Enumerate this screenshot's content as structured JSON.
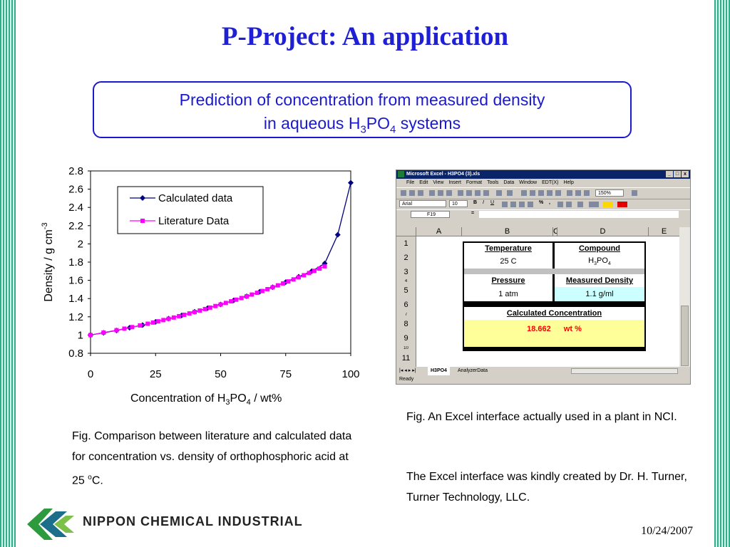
{
  "slide": {
    "title": "P-Project:  An application",
    "subtitle_line1": "Prediction of concentration from measured density",
    "subtitle_line2_pre": "in aqueous H",
    "subtitle_sub1": "3",
    "subtitle_mid": "PO",
    "subtitle_sub2": "4",
    "subtitle_post": " systems",
    "caption_left": "Fig.   Comparison between literature and calculated data for concentration vs. density of orthophosphoric acid at 25 ",
    "caption_left_sup": "o",
    "caption_left_end": "C.",
    "caption_right_1": "Fig.  An Excel interface actually used in a plant in NCI.",
    "caption_right_2": "The Excel interface was kindly created by Dr. H. Turner, Turner Technology, LLC.",
    "company": "NIPPON CHEMICAL INDUSTRIAL",
    "date": "10/24/2007"
  },
  "chart_data": {
    "type": "line",
    "xlabel_pre": "Concentration of H",
    "xlabel_sub1": "3",
    "xlabel_mid": "PO",
    "xlabel_sub2": "4",
    "xlabel_post": " / wt%",
    "ylabel": "Density / g cm",
    "ylabel_sup": "-3",
    "xlim": [
      0,
      100
    ],
    "ylim": [
      0.8,
      2.8
    ],
    "xticks": [
      "0",
      "25",
      "50",
      "75",
      "100"
    ],
    "yticks": [
      "0.8",
      "1",
      "1.2",
      "1.4",
      "1.6",
      "1.8",
      "2",
      "2.2",
      "2.4",
      "2.6",
      "2.8"
    ],
    "legend_position": "top-left",
    "series": [
      {
        "name": "Calculated data",
        "color": "#000080",
        "marker": "diamond",
        "x": [
          0,
          5,
          10,
          15,
          20,
          25,
          30,
          35,
          40,
          45,
          50,
          55,
          60,
          65,
          70,
          75,
          80,
          85,
          90,
          95,
          100
        ],
        "y": [
          1.0,
          1.025,
          1.05,
          1.08,
          1.11,
          1.145,
          1.18,
          1.215,
          1.255,
          1.295,
          1.335,
          1.38,
          1.425,
          1.475,
          1.525,
          1.58,
          1.64,
          1.7,
          1.785,
          2.1,
          2.67
        ]
      },
      {
        "name": "Literature Data",
        "color": "#ff00ff",
        "marker": "square",
        "x": [
          0,
          5,
          10,
          13,
          16,
          19,
          22,
          24,
          26,
          28,
          30,
          32,
          34,
          36,
          38,
          40,
          42,
          44,
          46,
          48,
          50,
          52,
          54,
          56,
          58,
          60,
          62,
          64,
          66,
          68,
          70,
          72,
          74,
          76,
          78,
          80,
          82,
          84,
          86,
          88,
          90
        ],
        "y": [
          1.0,
          1.027,
          1.053,
          1.07,
          1.087,
          1.105,
          1.124,
          1.137,
          1.15,
          1.164,
          1.178,
          1.192,
          1.207,
          1.222,
          1.237,
          1.253,
          1.269,
          1.285,
          1.301,
          1.318,
          1.335,
          1.352,
          1.37,
          1.388,
          1.406,
          1.425,
          1.444,
          1.463,
          1.483,
          1.503,
          1.524,
          1.545,
          1.566,
          1.588,
          1.61,
          1.633,
          1.656,
          1.68,
          1.704,
          1.729,
          1.754
        ]
      }
    ]
  },
  "excel": {
    "window_title": "Microsoft Excel - H3PO4 (3).xls",
    "win_buttons": [
      "_",
      "□",
      "x"
    ],
    "menus": [
      "File",
      "Edit",
      "View",
      "Insert",
      "Format",
      "Tools",
      "Data",
      "Window",
      "EDT(X)",
      "Help"
    ],
    "zoom": "150%",
    "font": "Arial",
    "font_size": "10",
    "name_box": "F19",
    "formula_equals": "=",
    "columns": [
      "A",
      "B",
      "C",
      "D",
      "E"
    ],
    "rows": [
      "1",
      "2",
      "3",
      "4",
      "5",
      "6",
      "7",
      "8",
      "9",
      "10",
      "11"
    ],
    "temperature_label": "Temperature",
    "temperature_value": "25 C",
    "compound_label": "Compound",
    "compound_value_pre": "H",
    "compound_sub1": "3",
    "compound_mid": "PO",
    "compound_sub2": "4",
    "pressure_label": "Pressure",
    "pressure_value": "1 atm",
    "density_label": "Measured Density",
    "density_value": "1.1 g/ml",
    "calc_label": "Calculated Concentration",
    "calc_value": "18.662",
    "calc_unit": "wt %",
    "sheet_tabs": [
      "H3PO4",
      "AnalyzerData"
    ],
    "status": "Ready",
    "colors": {
      "title_bar": "#0a246a",
      "density_cell": "#ccffff",
      "result_cell": "#ffff99",
      "result_text": "#ff0000"
    }
  }
}
